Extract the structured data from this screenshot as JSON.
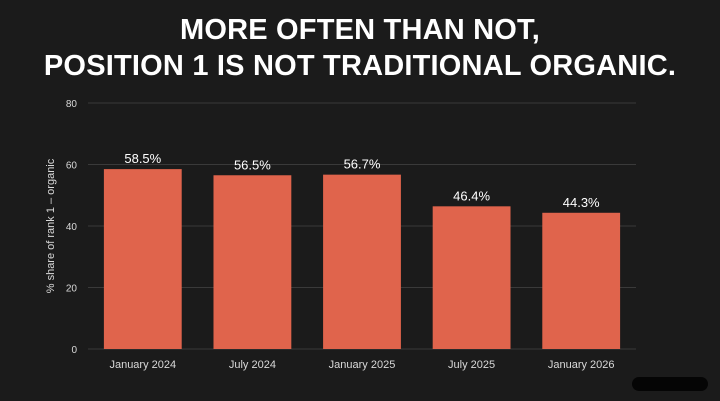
{
  "title": {
    "line1": "MORE OFTEN THAN NOT,",
    "line2": "POSITION 1 IS NOT TRADITIONAL ORGANIC."
  },
  "chart_data": {
    "type": "bar",
    "categories": [
      "January 2024",
      "July 2024",
      "January 2025",
      "July 2025",
      "January 2026"
    ],
    "values": [
      58.5,
      56.5,
      56.7,
      46.4,
      44.3
    ],
    "data_labels": [
      "58.5%",
      "56.5%",
      "56.7%",
      "46.4%",
      "44.3%"
    ],
    "xlabel": "",
    "ylabel": "% share of rank 1 – organic",
    "ylim": [
      0,
      80
    ],
    "yticks": [
      0,
      20,
      40,
      60,
      80
    ],
    "grid": true,
    "legend": "none"
  },
  "colors": {
    "background": "#1b1b1b",
    "bar": "#e0644c",
    "grid": "#3a3a3a",
    "text": "#ffffff",
    "tick_text": "#d9d9d9"
  }
}
